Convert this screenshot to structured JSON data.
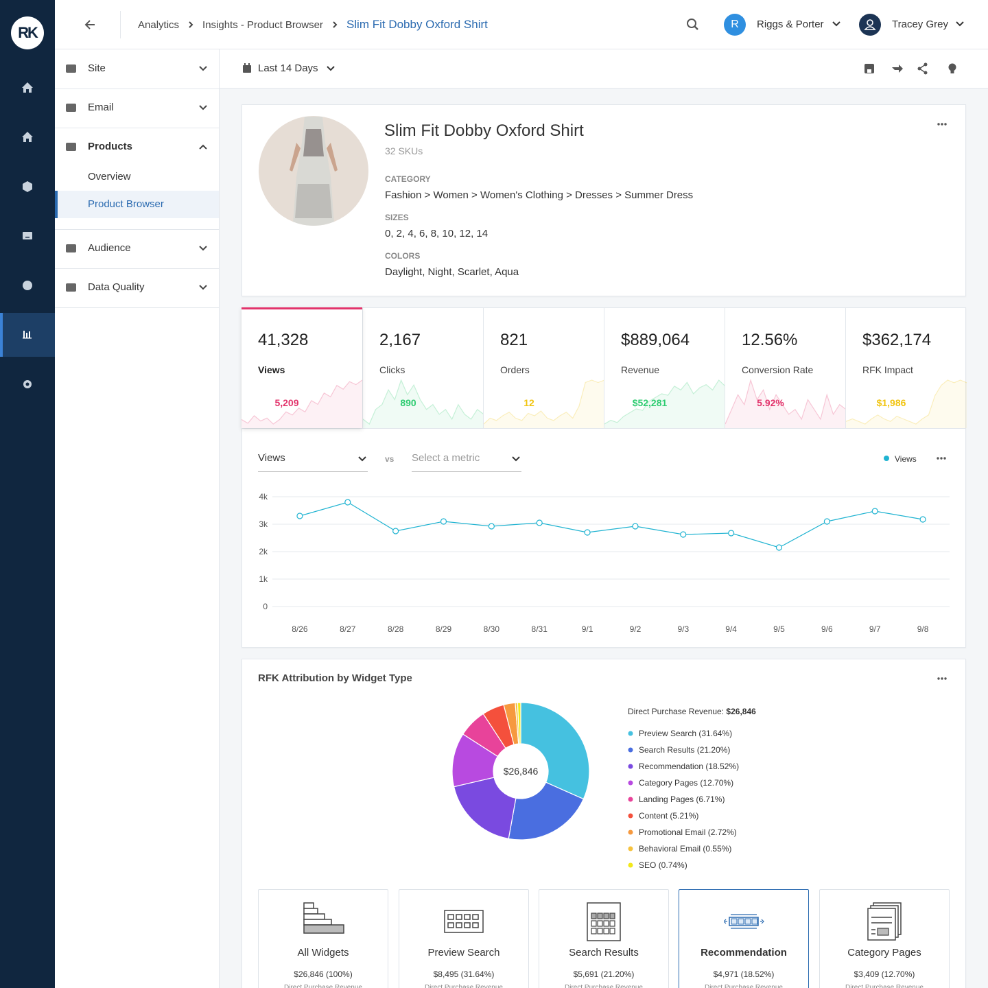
{
  "logo": "RK",
  "header": {
    "breadcrumbs": [
      "Analytics",
      "Insights - Product Browser",
      "Slim Fit Dobby Oxford Shirt"
    ],
    "account_initial": "R",
    "account": "Riggs & Porter",
    "user": "Tracey Grey"
  },
  "sidebar": {
    "items": [
      {
        "label": "Site"
      },
      {
        "label": "Email"
      },
      {
        "label": "Products",
        "expanded": true,
        "children": [
          {
            "label": "Overview"
          },
          {
            "label": "Product Browser",
            "selected": true
          }
        ]
      },
      {
        "label": "Audience"
      },
      {
        "label": "Data Quality"
      }
    ]
  },
  "toolbar": {
    "date_range": "Last 14 Days"
  },
  "product": {
    "name": "Slim Fit Dobby Oxford Shirt",
    "skus": "32 SKUs",
    "category_label": "CATEGORY",
    "category": "Fashion > Women > Women's Clothing > Dresses > Summer Dress",
    "sizes_label": "SIZES",
    "sizes": "0, 2, 4, 6, 8, 10, 12, 14",
    "colors_label": "COLORS",
    "colors": "Daylight, Night, Scarlet, Aqua"
  },
  "kpis": [
    {
      "value": "41,328",
      "label": "Views",
      "delta": "5,209",
      "color": "#e2336b",
      "selected": true,
      "trend": [
        20,
        15,
        25,
        18,
        22,
        14,
        20,
        30,
        26,
        35,
        30,
        45,
        40,
        55,
        50,
        65,
        60,
        70,
        66,
        72
      ]
    },
    {
      "value": "2,167",
      "label": "Clicks",
      "delta": "890",
      "color": "#2ecc71",
      "trend": [
        30,
        25,
        40,
        45,
        60,
        50,
        70,
        55,
        65,
        50,
        40,
        45,
        35,
        40,
        30,
        45,
        35,
        30,
        40,
        35
      ]
    },
    {
      "value": "821",
      "label": "Orders",
      "delta": "12",
      "color": "#f1c40f",
      "trend": [
        35,
        40,
        38,
        42,
        45,
        40,
        38,
        44,
        42,
        46,
        40,
        38,
        42,
        45,
        40,
        50,
        70,
        72,
        70,
        72
      ]
    },
    {
      "value": "$889,064",
      "label": "Revenue",
      "delta": "$52,281",
      "color": "#2ecc71",
      "trend": [
        10,
        15,
        12,
        20,
        25,
        30,
        28,
        40,
        45,
        50,
        48,
        60,
        55,
        65,
        50,
        58,
        62,
        55,
        68,
        60
      ]
    },
    {
      "value": "12.56%",
      "label": "Conversion Rate",
      "delta": "5.92%",
      "color": "#e2336b",
      "trend": [
        25,
        40,
        55,
        45,
        70,
        50,
        60,
        40,
        55,
        45,
        35,
        40,
        30,
        50,
        40,
        30,
        55,
        35,
        45,
        40
      ]
    },
    {
      "value": "$362,174",
      "label": "RFK Impact",
      "delta": "$1,986",
      "color": "#f1c40f",
      "trend": [
        40,
        42,
        40,
        38,
        42,
        45,
        42,
        40,
        44,
        42,
        40,
        38,
        42,
        45,
        60,
        68,
        72,
        70,
        72,
        70
      ]
    }
  ],
  "chart_data": [
    {
      "type": "line",
      "metric": "Views",
      "vs": "vs",
      "compare_placeholder": "Select a metric",
      "categories": [
        "8/26",
        "8/27",
        "8/28",
        "8/29",
        "8/30",
        "8/31",
        "9/1",
        "9/2",
        "9/3",
        "9/4",
        "9/5",
        "9/6",
        "9/7",
        "9/8"
      ],
      "series": [
        {
          "name": "Views",
          "color": "#1fb3d1",
          "values": [
            3300,
            3800,
            2750,
            3100,
            2925,
            3050,
            2700,
            2925,
            2625,
            2675,
            2150,
            3100,
            3475,
            3175
          ]
        }
      ],
      "ylim": [
        0,
        4000
      ],
      "yticks": [
        0,
        {
          "value": 1000,
          "label": "1k"
        },
        {
          "value": 2000,
          "label": "2k"
        },
        {
          "value": 3000,
          "label": "3k"
        },
        {
          "value": 4000,
          "label": "4k"
        }
      ],
      "grid": true
    },
    {
      "type": "pie",
      "title": "RFK Attribution by Widget Type",
      "legend_title": "Direct Purchase Revenue:",
      "total": "$26,846",
      "center_label": "$26,846",
      "categories": [
        "Preview Search",
        "Search Results",
        "Recommendation",
        "Category Pages",
        "Landing Pages",
        "Content",
        "Promotional Email",
        "Behavioral Email",
        "SEO"
      ],
      "values": [
        31.64,
        21.2,
        18.52,
        12.7,
        6.71,
        5.21,
        2.72,
        0.55,
        0.74
      ],
      "value_labels": [
        "(31.64%)",
        "(21.20%)",
        "(18.52%)",
        "(12.70%)",
        "(6.71%)",
        "(5.21%)",
        "(2.72%)",
        "(0.55%)",
        "(0.74%)"
      ],
      "colors": [
        "#45c1e0",
        "#4a6ee0",
        "#7a4ae0",
        "#b84ae0",
        "#e8439a",
        "#f4503c",
        "#f6993f",
        "#f6c23e",
        "#f2e81a"
      ]
    }
  ],
  "widgets": [
    {
      "name": "All Widgets",
      "value": "$26,846 (100%)",
      "sub": "Direct Purchase Revenue"
    },
    {
      "name": "Preview Search",
      "value": "$8,495 (31.64%)",
      "sub": "Direct Purchase Revenue"
    },
    {
      "name": "Search Results",
      "value": "$5,691 (21.20%)",
      "sub": "Direct Purchase Revenue"
    },
    {
      "name": "Recommendation",
      "value": "$4,971 (18.52%)",
      "sub": "Direct Purchase Revenue",
      "selected": true
    },
    {
      "name": "Category Pages",
      "value": "$3,409 (12.70%)",
      "sub": "Direct Purchase Revenue"
    }
  ]
}
